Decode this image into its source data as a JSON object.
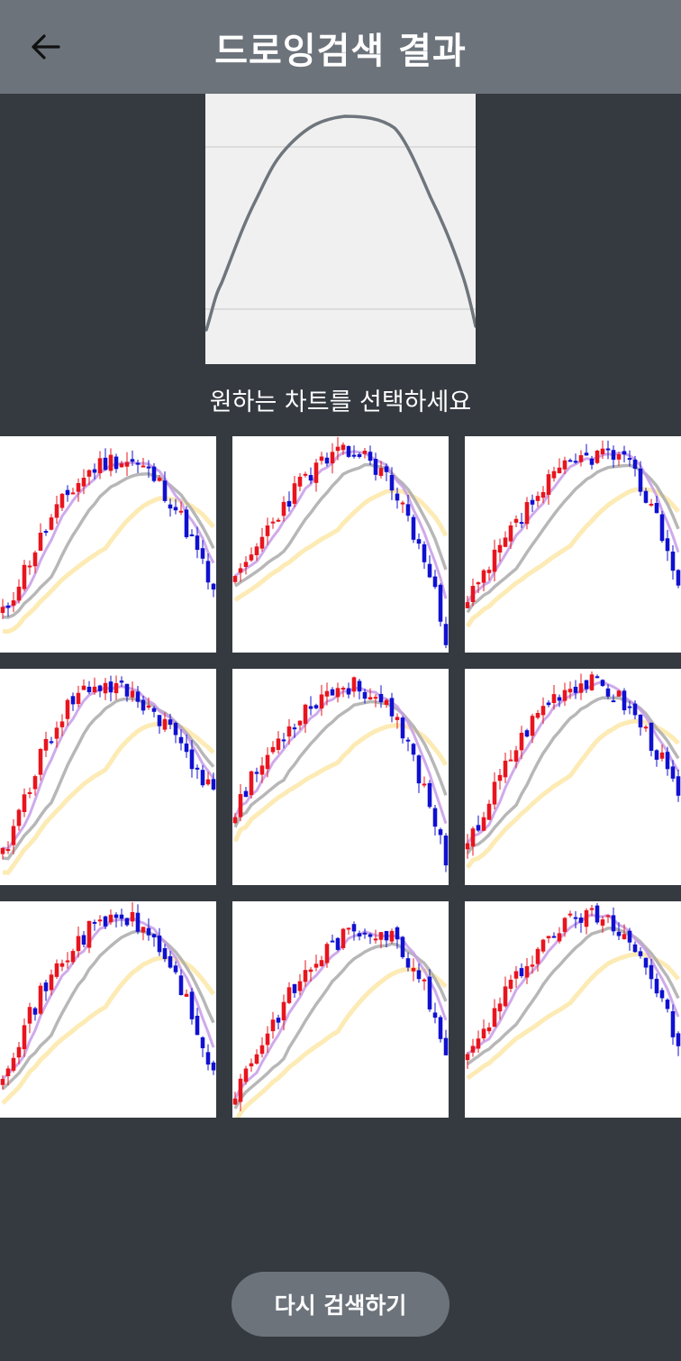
{
  "header": {
    "title": "드로잉검색 결과",
    "back_icon": "arrow-left-icon"
  },
  "drawing": {
    "description_icon": "user-drawn-curve"
  },
  "prompt": "원하는 차트를 선택하세요",
  "results": [
    {
      "id": 1,
      "seed": 11,
      "start": 0.15,
      "peak": 0.92,
      "peak_at": 0.55,
      "end": 0.25
    },
    {
      "id": 2,
      "seed": 23,
      "start": 0.3,
      "peak": 0.95,
      "peak_at": 0.55,
      "end": 0.05
    },
    {
      "id": 3,
      "seed": 37,
      "start": 0.2,
      "peak": 0.95,
      "peak_at": 0.65,
      "end": 0.3
    },
    {
      "id": 4,
      "seed": 41,
      "start": 0.1,
      "peak": 0.95,
      "peak_at": 0.45,
      "end": 0.4
    },
    {
      "id": 5,
      "seed": 53,
      "start": 0.35,
      "peak": 0.95,
      "peak_at": 0.55,
      "end": 0.1
    },
    {
      "id": 6,
      "seed": 67,
      "start": 0.15,
      "peak": 0.97,
      "peak_at": 0.55,
      "end": 0.4
    },
    {
      "id": 7,
      "seed": 71,
      "start": 0.2,
      "peak": 0.95,
      "peak_at": 0.55,
      "end": 0.15
    },
    {
      "id": 8,
      "seed": 83,
      "start": 0.1,
      "peak": 0.9,
      "peak_at": 0.65,
      "end": 0.3
    },
    {
      "id": 9,
      "seed": 97,
      "start": 0.25,
      "peak": 0.97,
      "peak_at": 0.6,
      "end": 0.3
    }
  ],
  "colors": {
    "up": "#e8141e",
    "down": "#1010d0",
    "ma_short": "#c79be8",
    "ma_mid": "#aaaaaa",
    "ma_long": "#fde7a8",
    "drawn_line": "#6e757c"
  },
  "retry_button": "다시 검색하기"
}
